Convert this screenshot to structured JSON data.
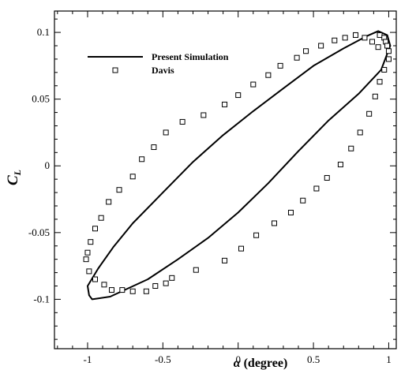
{
  "chart_data": {
    "type": "line",
    "title": "",
    "xlabel": {
      "symbol": "α",
      "text": " (degree)"
    },
    "ylabel": {
      "base": "C",
      "sub": "L"
    },
    "xlim": [
      -1.22,
      1.05
    ],
    "ylim": [
      -0.137,
      0.116
    ],
    "xticks": [
      -1,
      -0.5,
      0,
      0.5,
      1
    ],
    "xtick_labels": [
      "-1",
      "-0.5",
      "0",
      "0.5",
      "1"
    ],
    "yticks": [
      -0.1,
      -0.05,
      0,
      0.05,
      0.1
    ],
    "ytick_labels": [
      "-0.1",
      "-0.05",
      "0",
      "0.05",
      "0.1"
    ],
    "grid": false,
    "legend_position": "top-left",
    "series": [
      {
        "name": "Present Simulation",
        "style": "line",
        "color": "#000000",
        "x": [
          -0.97,
          -0.85,
          -0.6,
          -0.4,
          -0.2,
          0.0,
          0.2,
          0.4,
          0.6,
          0.8,
          0.95,
          1.01,
          0.99,
          0.93,
          0.85,
          0.7,
          0.5,
          0.3,
          0.1,
          -0.1,
          -0.3,
          -0.5,
          -0.7,
          -0.83,
          -0.93,
          -1.0,
          -0.99
        ],
        "y": [
          -0.1,
          -0.098,
          -0.085,
          -0.07,
          -0.054,
          -0.035,
          -0.013,
          0.011,
          0.034,
          0.054,
          0.072,
          0.09,
          0.098,
          0.101,
          0.097,
          0.088,
          0.075,
          0.058,
          0.041,
          0.023,
          0.003,
          -0.02,
          -0.043,
          -0.061,
          -0.077,
          -0.09,
          -0.097
        ]
      },
      {
        "name": "Davis",
        "style": "marker",
        "marker": "square",
        "color": "#000000",
        "x": [
          0.94,
          0.97,
          0.98,
          0.99,
          1.0,
          1.0,
          0.97,
          0.94,
          0.91,
          0.87,
          0.81,
          0.75,
          0.68,
          0.59,
          0.52,
          0.43,
          0.35,
          0.24,
          0.12,
          0.02,
          -0.09,
          -0.28,
          -0.44,
          -0.48,
          -0.55,
          -0.61,
          -0.7,
          -0.77,
          -0.84,
          -0.89,
          -0.95,
          -0.99,
          -1.01,
          -1.0,
          -0.98,
          -0.95,
          -0.91,
          -0.86,
          -0.79,
          -0.7,
          -0.64,
          -0.56,
          -0.48,
          -0.37,
          -0.23,
          -0.09,
          0.0,
          0.1,
          0.2,
          0.28,
          0.39,
          0.45,
          0.55,
          0.64,
          0.71,
          0.78,
          0.84,
          0.89,
          0.93
        ],
        "y": [
          0.098,
          0.096,
          0.093,
          0.09,
          0.086,
          0.08,
          0.072,
          0.063,
          0.052,
          0.039,
          0.025,
          0.013,
          0.001,
          -0.009,
          -0.017,
          -0.026,
          -0.035,
          -0.043,
          -0.052,
          -0.062,
          -0.071,
          -0.078,
          -0.084,
          -0.088,
          -0.09,
          -0.094,
          -0.094,
          -0.093,
          -0.093,
          -0.089,
          -0.085,
          -0.079,
          -0.07,
          -0.065,
          -0.057,
          -0.047,
          -0.039,
          -0.027,
          -0.018,
          -0.008,
          0.005,
          0.014,
          0.025,
          0.033,
          0.038,
          0.046,
          0.053,
          0.061,
          0.068,
          0.075,
          0.081,
          0.086,
          0.09,
          0.094,
          0.096,
          0.098,
          0.096,
          0.093,
          0.089
        ]
      }
    ]
  }
}
